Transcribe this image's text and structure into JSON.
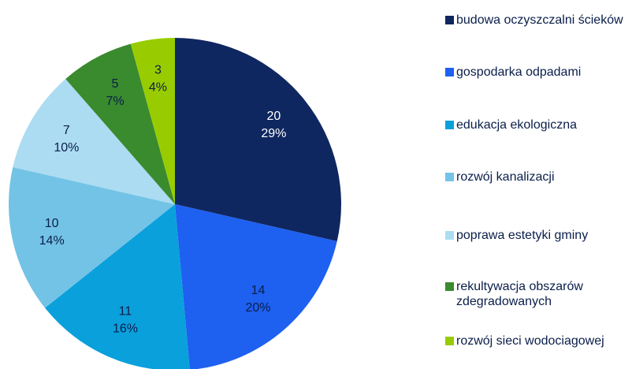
{
  "chart_data": {
    "type": "pie",
    "categories": [
      "budowa oczyszczalni ścieków",
      "gospodarka odpadami",
      "edukacja ekologiczna",
      "rozwój kanalizacji",
      "poprawa estetyki gminy",
      "rekultywacja obszarów zdegradowanych",
      "rozwój sieci wodociagowej"
    ],
    "values": [
      20,
      14,
      11,
      10,
      7,
      5,
      3
    ],
    "percent_labels": [
      "29%",
      "20%",
      "16%",
      "14%",
      "10%",
      "7%",
      "4%"
    ],
    "colors": [
      "#0f2760",
      "#1e60f0",
      "#0aa0dc",
      "#73c3e6",
      "#acdcf2",
      "#3a8a2e",
      "#99cc00"
    ],
    "legend": "right"
  }
}
